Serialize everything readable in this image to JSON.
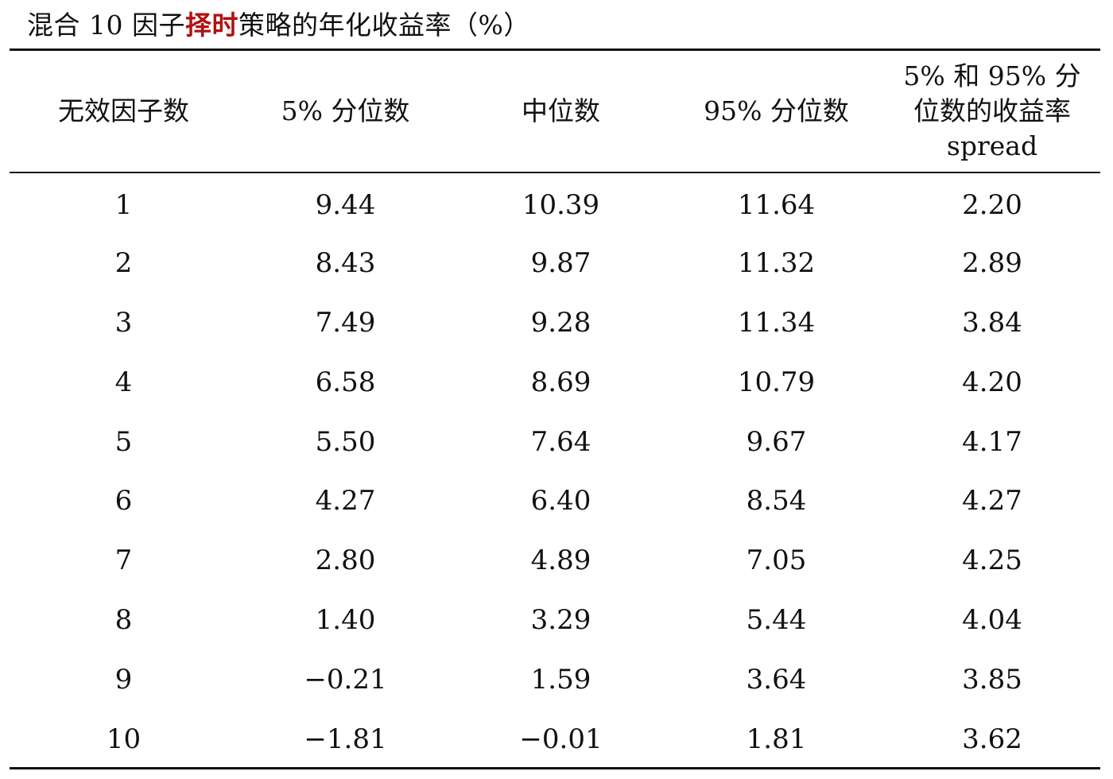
{
  "title": {
    "prefix": "混合 10 因子",
    "highlight": "择时",
    "suffix": "策略的年化收益率（%）",
    "highlight_color": "#b01212"
  },
  "table": {
    "headers": [
      "无效因子数",
      "5% 分位数",
      "中位数",
      "95% 分位数",
      "5% 和 95% 分位数的收益率 spread"
    ],
    "rows": [
      [
        "1",
        "9.44",
        "10.39",
        "11.64",
        "2.20"
      ],
      [
        "2",
        "8.43",
        "9.87",
        "11.32",
        "2.89"
      ],
      [
        "3",
        "7.49",
        "9.28",
        "11.34",
        "3.84"
      ],
      [
        "4",
        "6.58",
        "8.69",
        "10.79",
        "4.20"
      ],
      [
        "5",
        "5.50",
        "7.64",
        "9.67",
        "4.17"
      ],
      [
        "6",
        "4.27",
        "6.40",
        "8.54",
        "4.27"
      ],
      [
        "7",
        "2.80",
        "4.89",
        "7.05",
        "4.25"
      ],
      [
        "8",
        "1.40",
        "3.29",
        "5.44",
        "4.04"
      ],
      [
        "9",
        "−0.21",
        "1.59",
        "3.64",
        "3.85"
      ],
      [
        "10",
        "−1.81",
        "−0.01",
        "1.81",
        "3.62"
      ]
    ]
  }
}
